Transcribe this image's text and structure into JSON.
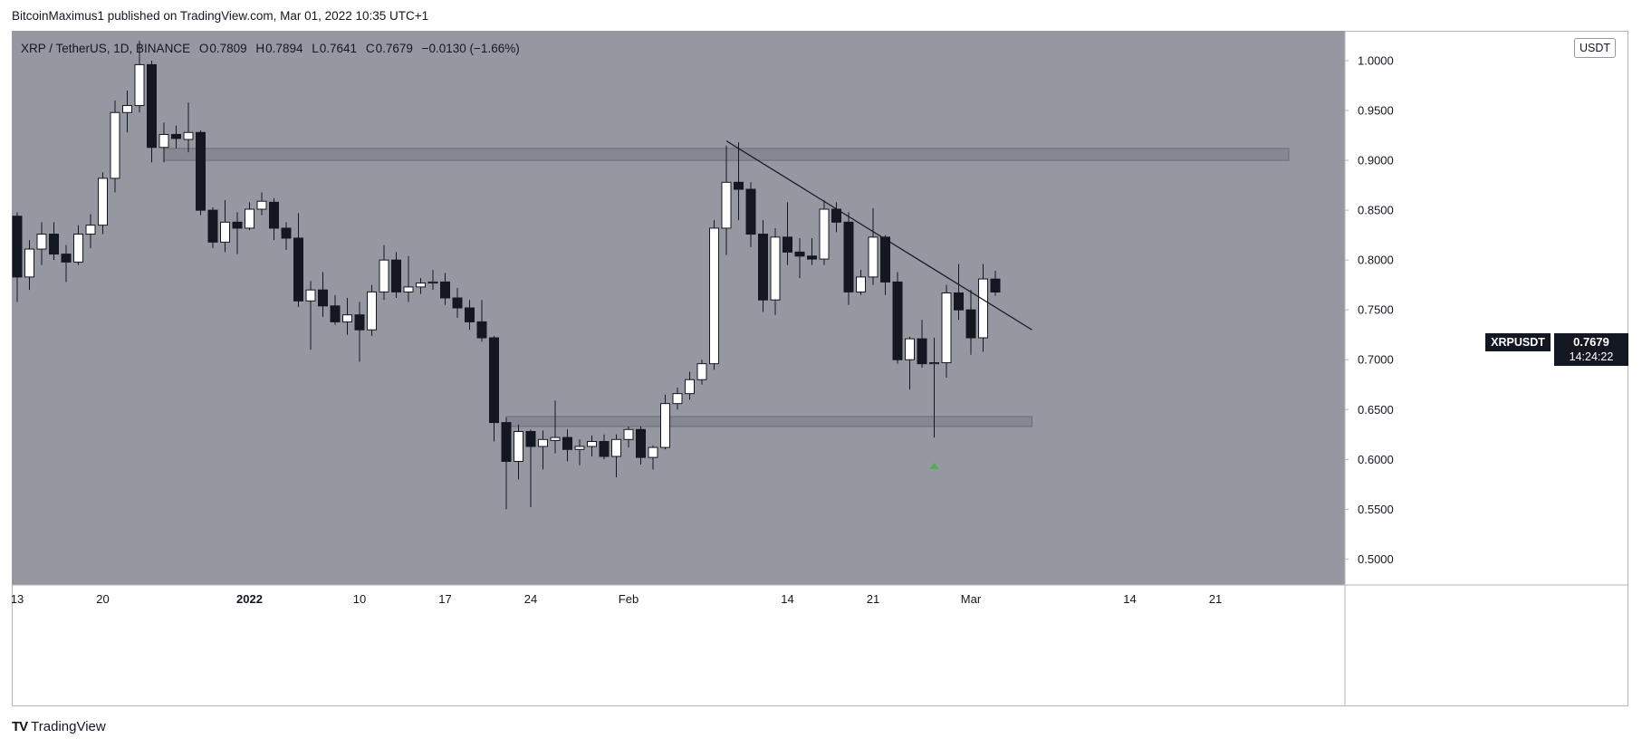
{
  "header": {
    "publish_line": "BitcoinMaximus1 published on TradingView.com, Mar 01, 2022 10:35 UTC+1"
  },
  "symbol_header": {
    "pair": "XRP / TetherUS, 1D, BINANCE",
    "open_label": "O",
    "open": "0.7809",
    "high_label": "H",
    "high": "0.7894",
    "low_label": "L",
    "low": "0.7641",
    "close_label": "C",
    "close": "0.7679",
    "change": "−0.0130 (−1.66%)"
  },
  "price_axis": {
    "currency": "USDT"
  },
  "last_price": {
    "symbol": "XRPUSDT",
    "price": "0.7679",
    "countdown": "14:24:22"
  },
  "footer": {
    "brand": "TradingView"
  },
  "colors": {
    "plot_background": "#9598a1",
    "up_candle": "#ffffff",
    "down_candle": "#131722",
    "zone": "#787b86",
    "marker": "#4caf50",
    "trendline": "#131722"
  },
  "chart_data": {
    "type": "candlestick",
    "title": "XRP / TetherUS, 1D, BINANCE",
    "ylim": [
      0.474,
      1.03
    ],
    "xlim": [
      "2021-12-13",
      "2022-03-27"
    ],
    "y_ticks": [
      "1.0000",
      "0.9500",
      "0.9000",
      "0.8500",
      "0.8000",
      "0.7500",
      "0.7000",
      "0.6500",
      "0.6000",
      "0.5500",
      "0.5000"
    ],
    "x_ticks": [
      {
        "date": "2021-12-13",
        "label": "13",
        "bold": false
      },
      {
        "date": "2021-12-20",
        "label": "20",
        "bold": false
      },
      {
        "date": "2022-01-01",
        "label": "2022",
        "bold": true
      },
      {
        "date": "2022-01-10",
        "label": "10",
        "bold": false
      },
      {
        "date": "2022-01-17",
        "label": "17",
        "bold": false
      },
      {
        "date": "2022-01-24",
        "label": "24",
        "bold": false
      },
      {
        "date": "2022-02-01",
        "label": "Feb",
        "bold": false
      },
      {
        "date": "2022-02-14",
        "label": "14",
        "bold": false
      },
      {
        "date": "2022-02-21",
        "label": "21",
        "bold": false
      },
      {
        "date": "2022-03-01",
        "label": "Mar",
        "bold": false
      },
      {
        "date": "2022-03-14",
        "label": "14",
        "bold": false
      },
      {
        "date": "2022-03-21",
        "label": "21",
        "bold": false
      }
    ],
    "candles": [
      {
        "date": "2021-12-13",
        "o": 0.844,
        "h": 0.848,
        "l": 0.758,
        "c": 0.783
      },
      {
        "date": "2021-12-14",
        "o": 0.783,
        "h": 0.82,
        "l": 0.77,
        "c": 0.811
      },
      {
        "date": "2021-12-15",
        "o": 0.811,
        "h": 0.838,
        "l": 0.795,
        "c": 0.826
      },
      {
        "date": "2021-12-16",
        "o": 0.826,
        "h": 0.838,
        "l": 0.8,
        "c": 0.806
      },
      {
        "date": "2021-12-17",
        "o": 0.806,
        "h": 0.815,
        "l": 0.778,
        "c": 0.798
      },
      {
        "date": "2021-12-18",
        "o": 0.798,
        "h": 0.835,
        "l": 0.795,
        "c": 0.826
      },
      {
        "date": "2021-12-19",
        "o": 0.826,
        "h": 0.846,
        "l": 0.812,
        "c": 0.835
      },
      {
        "date": "2021-12-20",
        "o": 0.835,
        "h": 0.888,
        "l": 0.826,
        "c": 0.882
      },
      {
        "date": "2021-12-21",
        "o": 0.882,
        "h": 0.96,
        "l": 0.868,
        "c": 0.948
      },
      {
        "date": "2021-12-22",
        "o": 0.948,
        "h": 0.97,
        "l": 0.928,
        "c": 0.955
      },
      {
        "date": "2021-12-23",
        "o": 0.955,
        "h": 1.02,
        "l": 0.948,
        "c": 0.996
      },
      {
        "date": "2021-12-24",
        "o": 0.996,
        "h": 1.0,
        "l": 0.898,
        "c": 0.913
      },
      {
        "date": "2021-12-25",
        "o": 0.913,
        "h": 0.938,
        "l": 0.898,
        "c": 0.926
      },
      {
        "date": "2021-12-26",
        "o": 0.926,
        "h": 0.935,
        "l": 0.912,
        "c": 0.922
      },
      {
        "date": "2021-12-27",
        "o": 0.921,
        "h": 0.958,
        "l": 0.908,
        "c": 0.928
      },
      {
        "date": "2021-12-28",
        "o": 0.928,
        "h": 0.93,
        "l": 0.845,
        "c": 0.85
      },
      {
        "date": "2021-12-29",
        "o": 0.85,
        "h": 0.853,
        "l": 0.812,
        "c": 0.818
      },
      {
        "date": "2021-12-30",
        "o": 0.818,
        "h": 0.86,
        "l": 0.808,
        "c": 0.838
      },
      {
        "date": "2021-12-31",
        "o": 0.838,
        "h": 0.848,
        "l": 0.806,
        "c": 0.832
      },
      {
        "date": "2022-01-01",
        "o": 0.832,
        "h": 0.858,
        "l": 0.83,
        "c": 0.851
      },
      {
        "date": "2022-01-02",
        "o": 0.851,
        "h": 0.868,
        "l": 0.845,
        "c": 0.859
      },
      {
        "date": "2022-01-03",
        "o": 0.858,
        "h": 0.862,
        "l": 0.82,
        "c": 0.832
      },
      {
        "date": "2022-01-04",
        "o": 0.832,
        "h": 0.838,
        "l": 0.81,
        "c": 0.822
      },
      {
        "date": "2022-01-05",
        "o": 0.822,
        "h": 0.847,
        "l": 0.753,
        "c": 0.759
      },
      {
        "date": "2022-01-06",
        "o": 0.759,
        "h": 0.779,
        "l": 0.71,
        "c": 0.77
      },
      {
        "date": "2022-01-07",
        "o": 0.77,
        "h": 0.788,
        "l": 0.743,
        "c": 0.754
      },
      {
        "date": "2022-01-08",
        "o": 0.754,
        "h": 0.765,
        "l": 0.735,
        "c": 0.738
      },
      {
        "date": "2022-01-09",
        "o": 0.738,
        "h": 0.762,
        "l": 0.725,
        "c": 0.745
      },
      {
        "date": "2022-01-10",
        "o": 0.745,
        "h": 0.758,
        "l": 0.698,
        "c": 0.73
      },
      {
        "date": "2022-01-11",
        "o": 0.73,
        "h": 0.775,
        "l": 0.724,
        "c": 0.768
      },
      {
        "date": "2022-01-12",
        "o": 0.768,
        "h": 0.815,
        "l": 0.76,
        "c": 0.8
      },
      {
        "date": "2022-01-13",
        "o": 0.8,
        "h": 0.808,
        "l": 0.762,
        "c": 0.768
      },
      {
        "date": "2022-01-14",
        "o": 0.768,
        "h": 0.804,
        "l": 0.758,
        "c": 0.773
      },
      {
        "date": "2022-01-15",
        "o": 0.773,
        "h": 0.782,
        "l": 0.766,
        "c": 0.777
      },
      {
        "date": "2022-01-16",
        "o": 0.777,
        "h": 0.79,
        "l": 0.77,
        "c": 0.778
      },
      {
        "date": "2022-01-17",
        "o": 0.778,
        "h": 0.787,
        "l": 0.755,
        "c": 0.762
      },
      {
        "date": "2022-01-18",
        "o": 0.762,
        "h": 0.772,
        "l": 0.742,
        "c": 0.752
      },
      {
        "date": "2022-01-19",
        "o": 0.752,
        "h": 0.76,
        "l": 0.73,
        "c": 0.738
      },
      {
        "date": "2022-01-20",
        "o": 0.738,
        "h": 0.76,
        "l": 0.718,
        "c": 0.722
      },
      {
        "date": "2022-01-21",
        "o": 0.722,
        "h": 0.724,
        "l": 0.618,
        "c": 0.637
      },
      {
        "date": "2022-01-22",
        "o": 0.637,
        "h": 0.642,
        "l": 0.55,
        "c": 0.598
      },
      {
        "date": "2022-01-23",
        "o": 0.598,
        "h": 0.635,
        "l": 0.58,
        "c": 0.628
      },
      {
        "date": "2022-01-24",
        "o": 0.628,
        "h": 0.63,
        "l": 0.552,
        "c": 0.613
      },
      {
        "date": "2022-01-25",
        "o": 0.613,
        "h": 0.629,
        "l": 0.59,
        "c": 0.62
      },
      {
        "date": "2022-01-26",
        "o": 0.619,
        "h": 0.659,
        "l": 0.606,
        "c": 0.622
      },
      {
        "date": "2022-01-27",
        "o": 0.622,
        "h": 0.63,
        "l": 0.598,
        "c": 0.61
      },
      {
        "date": "2022-01-28",
        "o": 0.61,
        "h": 0.62,
        "l": 0.594,
        "c": 0.613
      },
      {
        "date": "2022-01-29",
        "o": 0.613,
        "h": 0.624,
        "l": 0.603,
        "c": 0.618
      },
      {
        "date": "2022-01-30",
        "o": 0.618,
        "h": 0.625,
        "l": 0.6,
        "c": 0.603
      },
      {
        "date": "2022-01-31",
        "o": 0.603,
        "h": 0.625,
        "l": 0.582,
        "c": 0.62
      },
      {
        "date": "2022-02-01",
        "o": 0.62,
        "h": 0.633,
        "l": 0.612,
        "c": 0.63
      },
      {
        "date": "2022-02-02",
        "o": 0.63,
        "h": 0.633,
        "l": 0.595,
        "c": 0.602
      },
      {
        "date": "2022-02-03",
        "o": 0.602,
        "h": 0.614,
        "l": 0.59,
        "c": 0.612
      },
      {
        "date": "2022-02-04",
        "o": 0.612,
        "h": 0.665,
        "l": 0.61,
        "c": 0.656
      },
      {
        "date": "2022-02-05",
        "o": 0.656,
        "h": 0.672,
        "l": 0.65,
        "c": 0.666
      },
      {
        "date": "2022-02-06",
        "o": 0.666,
        "h": 0.688,
        "l": 0.66,
        "c": 0.68
      },
      {
        "date": "2022-02-07",
        "o": 0.68,
        "h": 0.7,
        "l": 0.675,
        "c": 0.696
      },
      {
        "date": "2022-02-08",
        "o": 0.696,
        "h": 0.84,
        "l": 0.69,
        "c": 0.832
      },
      {
        "date": "2022-02-09",
        "o": 0.832,
        "h": 0.915,
        "l": 0.805,
        "c": 0.878
      },
      {
        "date": "2022-02-10",
        "o": 0.878,
        "h": 0.918,
        "l": 0.84,
        "c": 0.871
      },
      {
        "date": "2022-02-11",
        "o": 0.871,
        "h": 0.878,
        "l": 0.813,
        "c": 0.826
      },
      {
        "date": "2022-02-12",
        "o": 0.826,
        "h": 0.84,
        "l": 0.748,
        "c": 0.76
      },
      {
        "date": "2022-02-13",
        "o": 0.76,
        "h": 0.832,
        "l": 0.745,
        "c": 0.823
      },
      {
        "date": "2022-02-14",
        "o": 0.823,
        "h": 0.858,
        "l": 0.795,
        "c": 0.808
      },
      {
        "date": "2022-02-15",
        "o": 0.808,
        "h": 0.822,
        "l": 0.782,
        "c": 0.804
      },
      {
        "date": "2022-02-16",
        "o": 0.804,
        "h": 0.822,
        "l": 0.795,
        "c": 0.801
      },
      {
        "date": "2022-02-17",
        "o": 0.801,
        "h": 0.86,
        "l": 0.795,
        "c": 0.851
      },
      {
        "date": "2022-02-18",
        "o": 0.851,
        "h": 0.858,
        "l": 0.828,
        "c": 0.838
      },
      {
        "date": "2022-02-19",
        "o": 0.838,
        "h": 0.848,
        "l": 0.755,
        "c": 0.768
      },
      {
        "date": "2022-02-20",
        "o": 0.768,
        "h": 0.79,
        "l": 0.765,
        "c": 0.783
      },
      {
        "date": "2022-02-21",
        "o": 0.783,
        "h": 0.852,
        "l": 0.775,
        "c": 0.823
      },
      {
        "date": "2022-02-22",
        "o": 0.823,
        "h": 0.825,
        "l": 0.765,
        "c": 0.778
      },
      {
        "date": "2022-02-23",
        "o": 0.778,
        "h": 0.788,
        "l": 0.696,
        "c": 0.7
      },
      {
        "date": "2022-02-24",
        "o": 0.7,
        "h": 0.723,
        "l": 0.67,
        "c": 0.721
      },
      {
        "date": "2022-02-25",
        "o": 0.721,
        "h": 0.74,
        "l": 0.692,
        "c": 0.696
      },
      {
        "date": "2022-02-26",
        "o": 0.696,
        "h": 0.722,
        "l": 0.622,
        "c": 0.697
      },
      {
        "date": "2022-02-27",
        "o": 0.697,
        "h": 0.775,
        "l": 0.682,
        "c": 0.767
      },
      {
        "date": "2022-02-28",
        "o": 0.767,
        "h": 0.796,
        "l": 0.74,
        "c": 0.75
      },
      {
        "date": "2022-03-01",
        "o": 0.75,
        "h": 0.77,
        "l": 0.705,
        "c": 0.722
      },
      {
        "date": "2022-03-02",
        "o": 0.722,
        "h": 0.796,
        "l": 0.708,
        "c": 0.781
      },
      {
        "date": "2022-03-03",
        "o": 0.7809,
        "h": 0.7894,
        "l": 0.7641,
        "c": 0.7679
      }
    ],
    "zones": [
      {
        "from": "2021-12-25",
        "to": "2022-03-27",
        "low": 0.9,
        "high": 0.912
      },
      {
        "from": "2022-01-22",
        "to": "2022-03-06",
        "low": 0.633,
        "high": 0.643
      }
    ],
    "trendline": {
      "x1": "2022-02-09",
      "y1": 0.9195,
      "x2": "2022-03-06",
      "y2": 0.73
    },
    "markers": [
      {
        "date": "2022-02-26",
        "value": 0.593,
        "shape": "up-triangle"
      }
    ],
    "current_price": 0.7679
  }
}
